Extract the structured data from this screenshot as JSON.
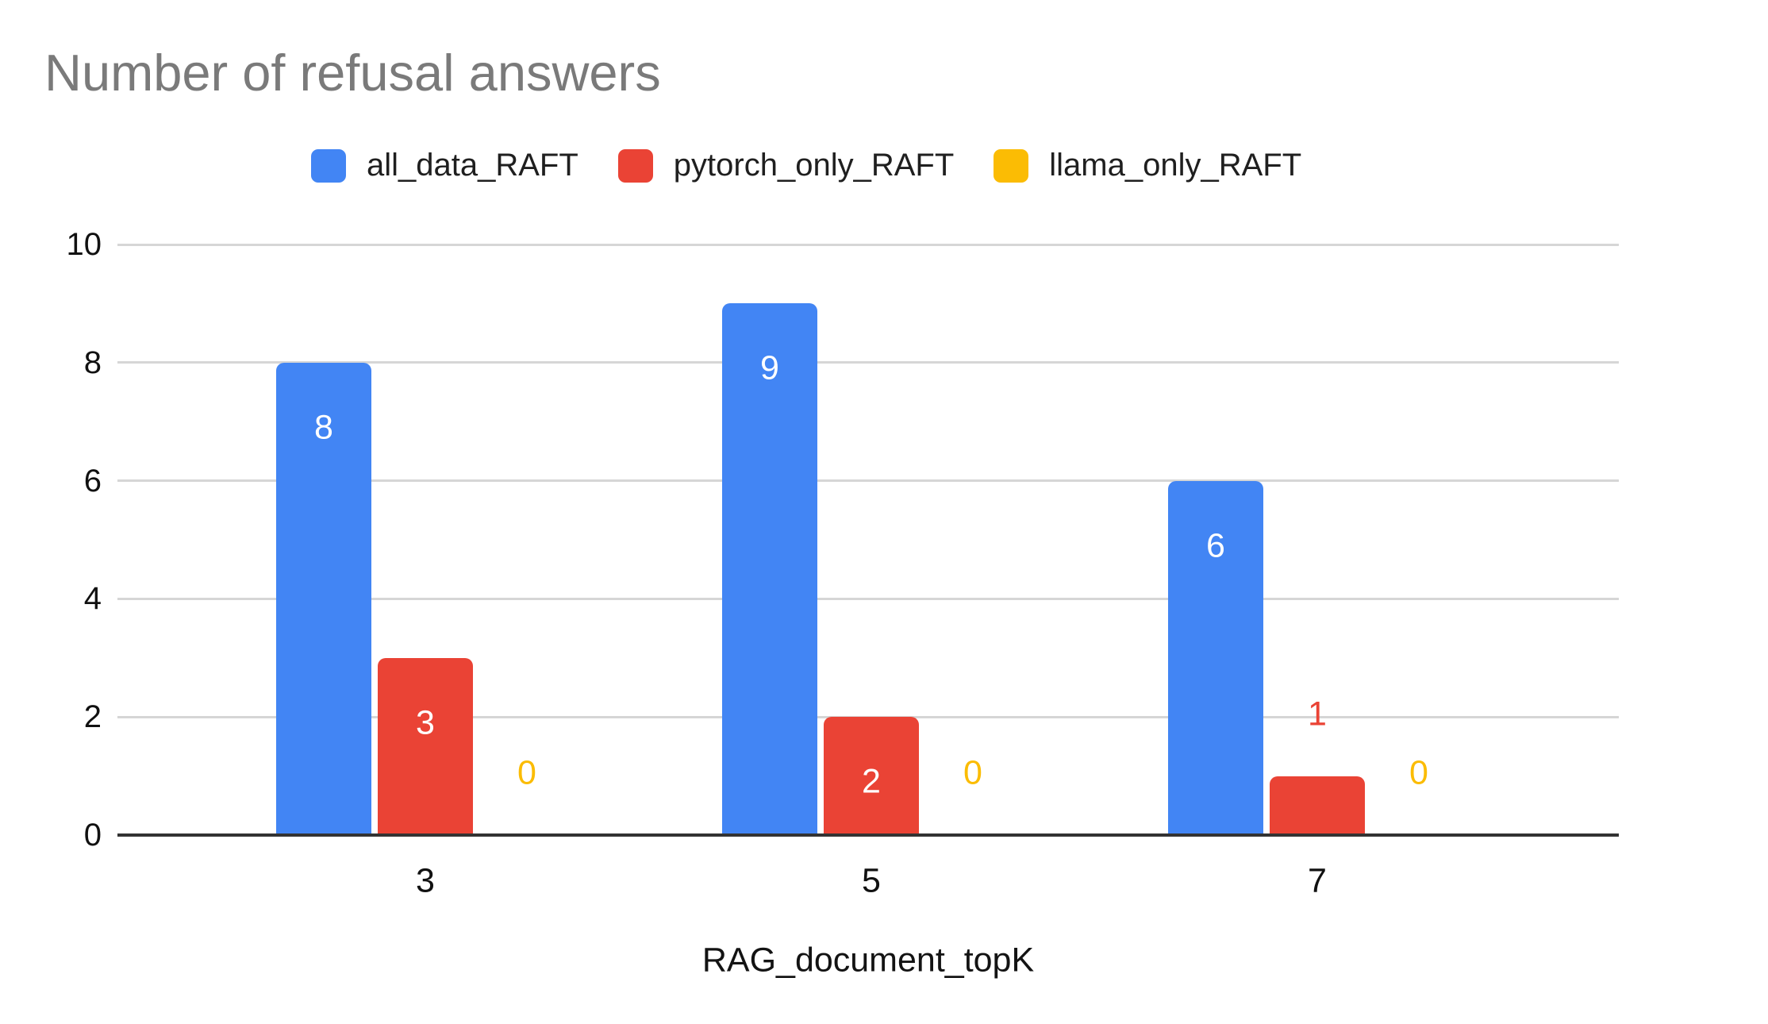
{
  "chart_data": {
    "type": "bar",
    "title": "Number of refusal answers",
    "xlabel": "RAG_document_topK",
    "categories": [
      "3",
      "5",
      "7"
    ],
    "series": [
      {
        "name": "all_data_RAFT",
        "color": "#4285F4",
        "values": [
          8,
          9,
          6
        ]
      },
      {
        "name": "pytorch_only_RAFT",
        "color": "#EA4335",
        "values": [
          3,
          2,
          1
        ]
      },
      {
        "name": "llama_only_RAFT",
        "color": "#FBBC04",
        "values": [
          0,
          0,
          0
        ]
      }
    ],
    "ylim": [
      0,
      10
    ],
    "yticks": [
      0,
      2,
      4,
      6,
      8,
      10
    ],
    "grid": true,
    "legend_position": "top",
    "data_labels": true
  },
  "colors": {
    "title": "#7a7a7a",
    "grid": "#d6d6d6",
    "axis_line": "#333333",
    "tick_label": "#111111",
    "legend_label": "#1f1f1f",
    "label_inside_bar": "#ffffff",
    "background": "#ffffff"
  }
}
